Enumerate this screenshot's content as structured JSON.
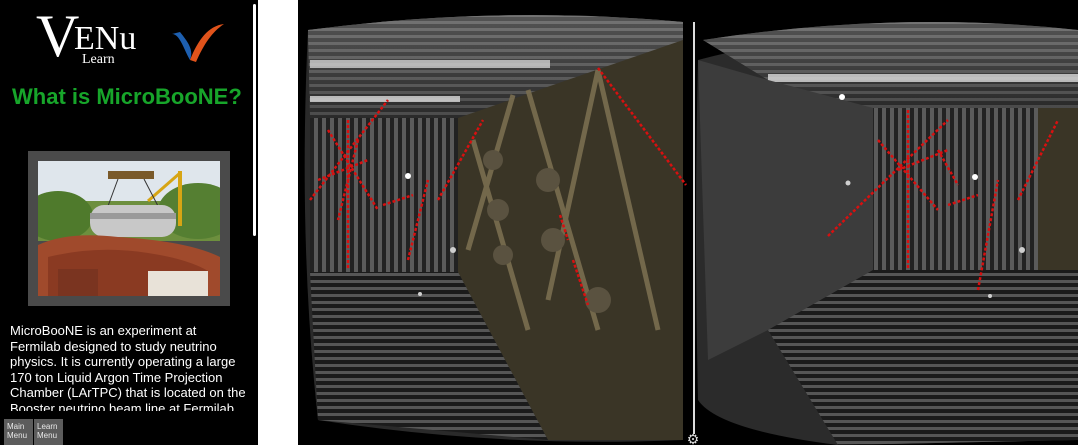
{
  "logo": {
    "letter": "V",
    "rest": "ENu",
    "sub": "Learn"
  },
  "page_title": "What is MicroBooNE?",
  "description": "MicroBooNE is an experiment at Fermilab designed to study neutrino physics. It is currently operating a large 170 ton Liquid Argon Time Projection Chamber (LArTPC) that is located on the Booster neutrino beam line at Fermilab.",
  "menu": {
    "main_label": "Main Menu",
    "learn_label": "Learn Menu"
  },
  "icons": {
    "settings": "gear-icon",
    "logo_mark": "swoosh-icon"
  },
  "colors": {
    "title_green": "#17a52a",
    "track_red": "#d81010",
    "sidebar_bg": "#000000",
    "button_gray": "#5c5c5c"
  }
}
